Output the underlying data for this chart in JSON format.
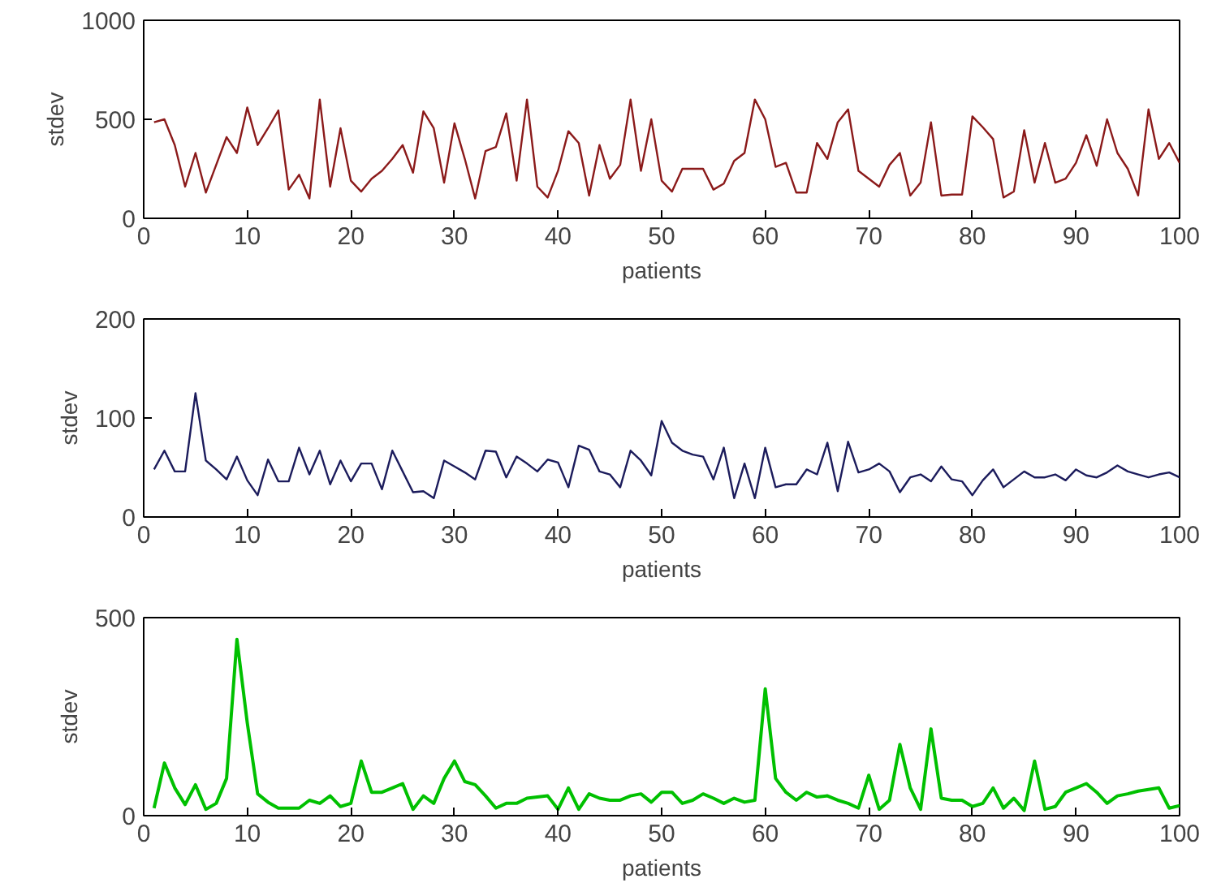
{
  "chart_data": [
    {
      "type": "line",
      "xlabel": "patients",
      "ylabel": "stdev",
      "x": [
        1,
        2,
        3,
        4,
        5,
        6,
        7,
        8,
        9,
        10,
        11,
        12,
        13,
        14,
        15,
        16,
        17,
        18,
        19,
        20,
        21,
        22,
        23,
        24,
        25,
        26,
        27,
        28,
        29,
        30,
        31,
        32,
        33,
        34,
        35,
        36,
        37,
        38,
        39,
        40,
        41,
        42,
        43,
        44,
        45,
        46,
        47,
        48,
        49,
        50,
        51,
        52,
        53,
        54,
        55,
        56,
        57,
        58,
        59,
        60,
        61,
        62,
        63,
        64,
        65,
        66,
        67,
        68,
        69,
        70,
        71,
        72,
        73,
        74,
        75,
        76,
        77,
        78,
        79,
        80,
        81,
        82,
        83,
        84,
        85,
        86,
        87,
        88,
        89,
        90,
        91,
        92,
        93,
        94,
        95,
        96,
        97,
        98,
        99,
        100
      ],
      "xlim": [
        0,
        100
      ],
      "xticks": [
        0,
        10,
        20,
        30,
        40,
        50,
        60,
        70,
        80,
        90,
        100
      ],
      "ylim": [
        0,
        1000
      ],
      "yticks": [
        0,
        500,
        1000
      ],
      "grid": false,
      "series": [
        {
          "color": "#8b1a1a",
          "values": [
            485,
            500,
            370,
            160,
            330,
            130,
            270,
            410,
            330,
            560,
            370,
            455,
            545,
            145,
            220,
            100,
            600,
            160,
            455,
            190,
            135,
            200,
            240,
            300,
            370,
            230,
            540,
            455,
            180,
            480,
            300,
            100,
            340,
            360,
            530,
            190,
            600,
            160,
            105,
            240,
            440,
            380,
            115,
            370,
            200,
            270,
            600,
            240,
            500,
            190,
            135,
            250,
            250,
            250,
            145,
            175,
            290,
            330,
            600,
            500,
            260,
            280,
            130,
            130,
            380,
            300,
            485,
            550,
            240,
            200,
            160,
            270,
            330,
            115,
            180,
            485,
            115,
            120,
            120,
            515,
            460,
            400,
            105,
            135,
            445,
            180,
            380,
            180,
            200,
            280,
            420,
            265,
            500,
            330,
            250,
            115,
            550,
            300,
            380,
            280
          ]
        }
      ]
    },
    {
      "type": "line",
      "xlabel": "patients",
      "ylabel": "stdev",
      "x": [
        1,
        2,
        3,
        4,
        5,
        6,
        7,
        8,
        9,
        10,
        11,
        12,
        13,
        14,
        15,
        16,
        17,
        18,
        19,
        20,
        21,
        22,
        23,
        24,
        25,
        26,
        27,
        28,
        29,
        30,
        31,
        32,
        33,
        34,
        35,
        36,
        37,
        38,
        39,
        40,
        41,
        42,
        43,
        44,
        45,
        46,
        47,
        48,
        49,
        50,
        51,
        52,
        53,
        54,
        55,
        56,
        57,
        58,
        59,
        60,
        61,
        62,
        63,
        64,
        65,
        66,
        67,
        68,
        69,
        70,
        71,
        72,
        73,
        74,
        75,
        76,
        77,
        78,
        79,
        80,
        81,
        82,
        83,
        84,
        85,
        86,
        87,
        88,
        89,
        90,
        91,
        92,
        93,
        94,
        95,
        96,
        97,
        98,
        99,
        100
      ],
      "xlim": [
        0,
        100
      ],
      "xticks": [
        0,
        10,
        20,
        30,
        40,
        50,
        60,
        70,
        80,
        90,
        100
      ],
      "ylim": [
        0,
        200
      ],
      "yticks": [
        0,
        100,
        200
      ],
      "grid": false,
      "series": [
        {
          "color": "#1c1c5c",
          "values": [
            48,
            67,
            46,
            46,
            125,
            57,
            48,
            38,
            61,
            37,
            22,
            58,
            36,
            36,
            70,
            43,
            67,
            33,
            57,
            36,
            54,
            54,
            28,
            67,
            46,
            25,
            26,
            19,
            57,
            51,
            45,
            38,
            67,
            66,
            40,
            61,
            54,
            46,
            58,
            55,
            30,
            72,
            68,
            46,
            43,
            30,
            67,
            57,
            42,
            97,
            75,
            67,
            63,
            61,
            38,
            70,
            19,
            54,
            19,
            70,
            30,
            33,
            33,
            48,
            43,
            75,
            26,
            76,
            45,
            48,
            54,
            46,
            25,
            40,
            43,
            36,
            51,
            38,
            36,
            22,
            37,
            48,
            30,
            38,
            46,
            40,
            40,
            43,
            37,
            48,
            42,
            40,
            45,
            52,
            46,
            43,
            40,
            43,
            45,
            40
          ]
        }
      ]
    },
    {
      "type": "line",
      "xlabel": "patients",
      "ylabel": "stdev",
      "x": [
        1,
        2,
        3,
        4,
        5,
        6,
        7,
        8,
        9,
        10,
        11,
        12,
        13,
        14,
        15,
        16,
        17,
        18,
        19,
        20,
        21,
        22,
        23,
        24,
        25,
        26,
        27,
        28,
        29,
        30,
        31,
        32,
        33,
        34,
        35,
        36,
        37,
        38,
        39,
        40,
        41,
        42,
        43,
        44,
        45,
        46,
        47,
        48,
        49,
        50,
        51,
        52,
        53,
        54,
        55,
        56,
        57,
        58,
        59,
        60,
        61,
        62,
        63,
        64,
        65,
        66,
        67,
        68,
        69,
        70,
        71,
        72,
        73,
        74,
        75,
        76,
        77,
        78,
        79,
        80,
        81,
        82,
        83,
        84,
        85,
        86,
        87,
        88,
        89,
        90,
        91,
        92,
        93,
        94,
        95,
        96,
        97,
        98,
        99,
        100
      ],
      "xlim": [
        0,
        100
      ],
      "xticks": [
        0,
        10,
        20,
        30,
        40,
        50,
        60,
        70,
        80,
        90,
        100
      ],
      "ylim": [
        0,
        500
      ],
      "yticks": [
        0,
        500
      ],
      "grid": false,
      "series": [
        {
          "color": "#00c000",
          "values": [
            19,
            133,
            70,
            28,
            78,
            16,
            31,
            94,
            445,
            234,
            55,
            34,
            19,
            19,
            19,
            39,
            31,
            50,
            23,
            31,
            138,
            59,
            59,
            70,
            81,
            16,
            50,
            31,
            94,
            138,
            86,
            78,
            50,
            19,
            31,
            31,
            44,
            47,
            50,
            16,
            70,
            16,
            55,
            44,
            39,
            39,
            50,
            55,
            34,
            59,
            59,
            31,
            39,
            55,
            44,
            31,
            44,
            34,
            39,
            320,
            94,
            59,
            39,
            59,
            47,
            50,
            39,
            31,
            19,
            102,
            16,
            39,
            180,
            70,
            16,
            219,
            44,
            39,
            39,
            23,
            31,
            70,
            19,
            44,
            13,
            138,
            16,
            23,
            59,
            70,
            81,
            59,
            31,
            50,
            55,
            62,
            66,
            70,
            19,
            25
          ]
        }
      ]
    }
  ]
}
